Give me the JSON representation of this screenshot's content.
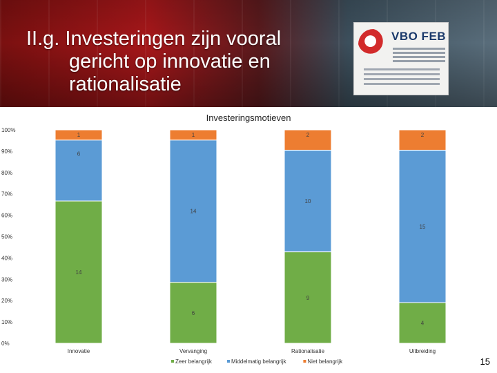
{
  "slide": {
    "title_lines": [
      "II.g. Investeringen zijn vooral",
      "gericht op innovatie en",
      "rationalisatie"
    ],
    "sign_org": "VBO FEB",
    "page_number": "15"
  },
  "chart_data": {
    "type": "bar",
    "stacked": "percent",
    "title": "Investeringsmotieven",
    "categories": [
      "Innovatie",
      "Vervanging",
      "Rationalisatie",
      "Uitbreiding"
    ],
    "series": [
      {
        "name": "Zeer belangrijk",
        "color": "#70ad47",
        "values": [
          14,
          6,
          9,
          4
        ]
      },
      {
        "name": "Middelmatig belangrijk",
        "color": "#5b9bd5",
        "values": [
          6,
          14,
          10,
          15
        ]
      },
      {
        "name": "Niet belangrijk",
        "color": "#ed7d31",
        "values": [
          1,
          1,
          2,
          2
        ]
      }
    ],
    "y_ticks": [
      "0%",
      "10%",
      "20%",
      "30%",
      "40%",
      "50%",
      "60%",
      "70%",
      "80%",
      "90%",
      "100%"
    ],
    "ylim": [
      0,
      100
    ],
    "grid": false,
    "legend_position": "bottom"
  }
}
